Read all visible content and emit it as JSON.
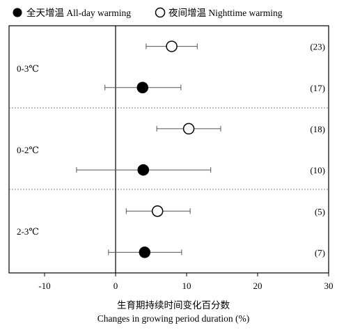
{
  "chart_data": {
    "type": "scatter",
    "subtype": "forest-plot (point estimate with horizontal error bars)",
    "xlabel_zh": "生育期持续时间变化百分数",
    "xlabel_en": "Changes in growing period duration (%)",
    "xlim": [
      -15,
      30
    ],
    "xticks": [
      -10,
      0,
      10,
      20,
      30
    ],
    "legend": {
      "placement": "top",
      "items": [
        {
          "key": "all_day",
          "label": "全天增温 All-day warming",
          "marker": "filled-circle"
        },
        {
          "key": "nighttime",
          "label": "夜间增温 Nighttime warming",
          "marker": "open-circle"
        }
      ]
    },
    "groups": [
      {
        "label": "0-3℃",
        "rows": [
          {
            "series": "nighttime",
            "mean": 7.9,
            "lower": 4.3,
            "upper": 11.5,
            "n": "(23)"
          },
          {
            "series": "all_day",
            "mean": 3.8,
            "lower": -1.5,
            "upper": 9.2,
            "n": "(17)"
          }
        ]
      },
      {
        "label": "0-2℃",
        "rows": [
          {
            "series": "nighttime",
            "mean": 10.3,
            "lower": 5.8,
            "upper": 14.8,
            "n": "(18)"
          },
          {
            "series": "all_day",
            "mean": 3.9,
            "lower": -5.5,
            "upper": 13.4,
            "n": "(10)"
          }
        ]
      },
      {
        "label": "2-3℃",
        "rows": [
          {
            "series": "nighttime",
            "mean": 5.9,
            "lower": 1.5,
            "upper": 10.5,
            "n": "(5)"
          },
          {
            "series": "all_day",
            "mean": 4.1,
            "lower": -1.0,
            "upper": 9.3,
            "n": "(7)"
          }
        ]
      }
    ]
  }
}
